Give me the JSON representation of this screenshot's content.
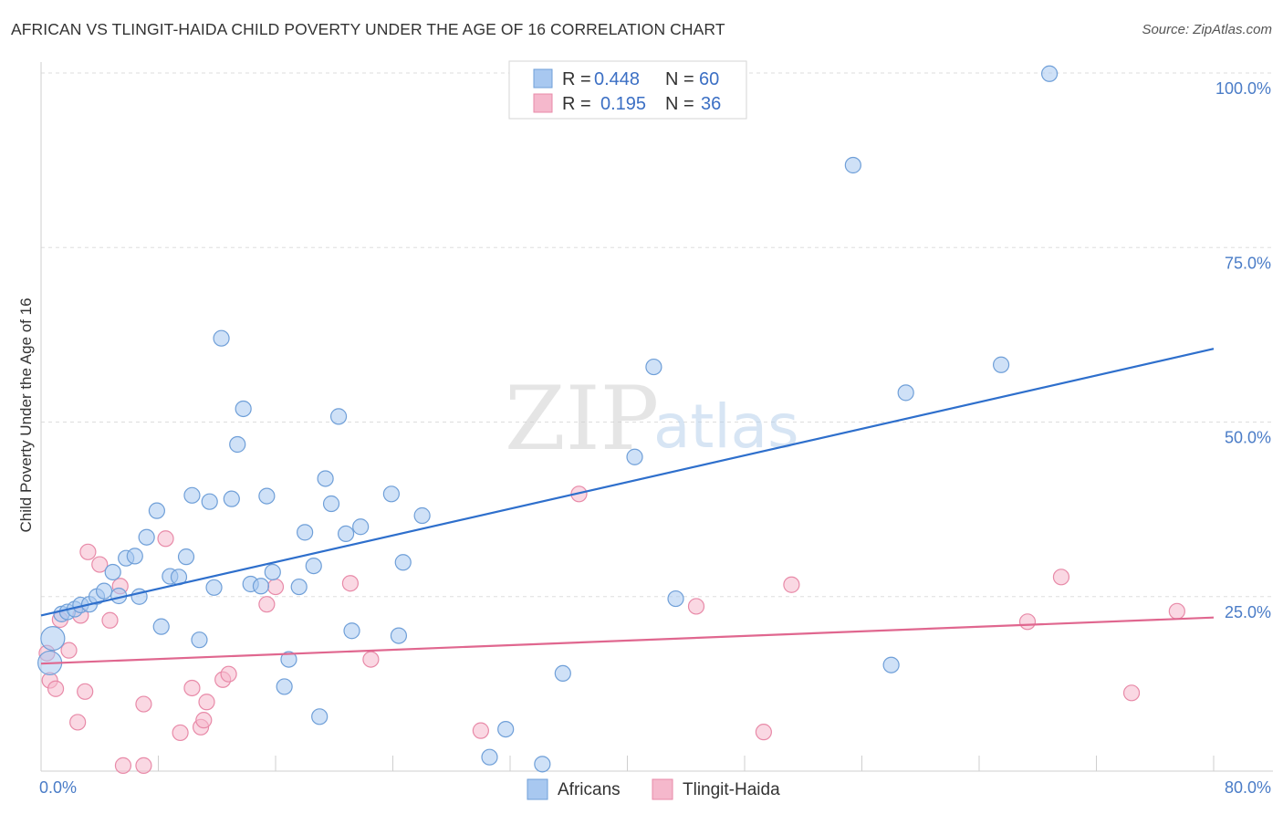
{
  "title": "AFRICAN VS TLINGIT-HAIDA CHILD POVERTY UNDER THE AGE OF 16 CORRELATION CHART",
  "source": "Source: ZipAtlas.com",
  "watermark": {
    "zip": "ZIP",
    "atlas": "atlas"
  },
  "colors": {
    "africans_fill": "#a8c8f0",
    "africans_stroke": "#6f9fd8",
    "africans_line": "#2e6fcc",
    "tlingit_fill": "#f5b8cc",
    "tlingit_stroke": "#e88aa8",
    "tlingit_line": "#e0678f",
    "tick_text": "#4a7cc7",
    "grid": "#dddddd"
  },
  "legend": {
    "rows": [
      {
        "r_label": "R =",
        "r_value": "0.448",
        "n_label": "N =",
        "n_value": "60"
      },
      {
        "r_label": "R =",
        "r_value": "0.195",
        "n_label": "N =",
        "n_value": "36"
      }
    ]
  },
  "chart_data": {
    "type": "scatter",
    "title": "AFRICAN VS TLINGIT-HAIDA CHILD POVERTY UNDER THE AGE OF 16 CORRELATION CHART",
    "xlabel": "",
    "ylabel": "Child Poverty Under the Age of 16",
    "xlim": [
      0,
      80
    ],
    "ylim": [
      0,
      100
    ],
    "x_tick_labels": [
      "0.0%",
      "80.0%"
    ],
    "y_ticks": [
      25,
      50,
      75,
      100
    ],
    "y_tick_labels": [
      "25.0%",
      "50.0%",
      "75.0%",
      "100.0%"
    ],
    "grid": true,
    "legend_position": "top-center",
    "series": [
      {
        "name": "Africans",
        "trend": {
          "x": [
            0,
            80
          ],
          "y": [
            22.3,
            60.5
          ]
        },
        "points": [
          {
            "x": 0.8,
            "y": 19.0,
            "big": true
          },
          {
            "x": 0.6,
            "y": 15.5,
            "big": true
          },
          {
            "x": 1.4,
            "y": 22.5
          },
          {
            "x": 1.8,
            "y": 22.8
          },
          {
            "x": 2.3,
            "y": 23.2
          },
          {
            "x": 2.7,
            "y": 23.8
          },
          {
            "x": 3.3,
            "y": 23.9
          },
          {
            "x": 3.8,
            "y": 25.0
          },
          {
            "x": 4.3,
            "y": 25.8
          },
          {
            "x": 4.9,
            "y": 28.5
          },
          {
            "x": 5.3,
            "y": 25.1
          },
          {
            "x": 5.8,
            "y": 30.5
          },
          {
            "x": 6.4,
            "y": 30.8
          },
          {
            "x": 6.7,
            "y": 25.0
          },
          {
            "x": 7.2,
            "y": 33.5
          },
          {
            "x": 7.9,
            "y": 37.3
          },
          {
            "x": 8.2,
            "y": 20.7
          },
          {
            "x": 8.8,
            "y": 27.9
          },
          {
            "x": 9.4,
            "y": 27.8
          },
          {
            "x": 9.9,
            "y": 30.7
          },
          {
            "x": 10.3,
            "y": 39.5
          },
          {
            "x": 10.8,
            "y": 18.8
          },
          {
            "x": 11.5,
            "y": 38.6
          },
          {
            "x": 11.8,
            "y": 26.3
          },
          {
            "x": 12.3,
            "y": 62.0
          },
          {
            "x": 13.0,
            "y": 39.0
          },
          {
            "x": 13.4,
            "y": 46.8
          },
          {
            "x": 13.8,
            "y": 51.9
          },
          {
            "x": 14.3,
            "y": 26.8
          },
          {
            "x": 15.0,
            "y": 26.5
          },
          {
            "x": 15.4,
            "y": 39.4
          },
          {
            "x": 15.8,
            "y": 28.5
          },
          {
            "x": 16.9,
            "y": 16.0
          },
          {
            "x": 17.6,
            "y": 26.4
          },
          {
            "x": 18.0,
            "y": 34.2
          },
          {
            "x": 18.6,
            "y": 29.4
          },
          {
            "x": 19.4,
            "y": 41.9
          },
          {
            "x": 19.8,
            "y": 38.3
          },
          {
            "x": 20.8,
            "y": 34.0
          },
          {
            "x": 21.8,
            "y": 35.0
          },
          {
            "x": 20.3,
            "y": 50.8
          },
          {
            "x": 21.2,
            "y": 20.1
          },
          {
            "x": 16.6,
            "y": 12.1
          },
          {
            "x": 19.0,
            "y": 7.8
          },
          {
            "x": 24.4,
            "y": 19.4
          },
          {
            "x": 24.7,
            "y": 29.9
          },
          {
            "x": 23.9,
            "y": 39.7
          },
          {
            "x": 26.0,
            "y": 36.6
          },
          {
            "x": 30.6,
            "y": 2.0
          },
          {
            "x": 31.7,
            "y": 6.0
          },
          {
            "x": 34.2,
            "y": 1.0
          },
          {
            "x": 35.6,
            "y": 14.0
          },
          {
            "x": 40.5,
            "y": 45.0
          },
          {
            "x": 41.8,
            "y": 57.9
          },
          {
            "x": 43.3,
            "y": 24.7
          },
          {
            "x": 55.4,
            "y": 86.8
          },
          {
            "x": 58.0,
            "y": 15.2
          },
          {
            "x": 59.0,
            "y": 54.2
          },
          {
            "x": 65.5,
            "y": 58.2
          },
          {
            "x": 68.8,
            "y": 99.9
          }
        ]
      },
      {
        "name": "Tlingit-Haida",
        "trend": {
          "x": [
            0,
            80
          ],
          "y": [
            15.4,
            22.0
          ]
        },
        "points": [
          {
            "x": 0.4,
            "y": 16.9
          },
          {
            "x": 0.6,
            "y": 13.0
          },
          {
            "x": 1.0,
            "y": 11.8
          },
          {
            "x": 1.3,
            "y": 21.7
          },
          {
            "x": 1.9,
            "y": 17.3
          },
          {
            "x": 2.5,
            "y": 7.0
          },
          {
            "x": 2.7,
            "y": 22.3
          },
          {
            "x": 3.0,
            "y": 11.4
          },
          {
            "x": 3.2,
            "y": 31.4
          },
          {
            "x": 4.0,
            "y": 29.6
          },
          {
            "x": 4.7,
            "y": 21.6
          },
          {
            "x": 5.4,
            "y": 26.5
          },
          {
            "x": 5.6,
            "y": 0.8
          },
          {
            "x": 7.0,
            "y": 0.8
          },
          {
            "x": 7.0,
            "y": 9.6
          },
          {
            "x": 8.5,
            "y": 33.3
          },
          {
            "x": 9.5,
            "y": 5.5
          },
          {
            "x": 10.3,
            "y": 11.9
          },
          {
            "x": 10.9,
            "y": 6.3
          },
          {
            "x": 11.1,
            "y": 7.3
          },
          {
            "x": 11.3,
            "y": 9.9
          },
          {
            "x": 12.4,
            "y": 13.1
          },
          {
            "x": 12.8,
            "y": 13.9
          },
          {
            "x": 15.4,
            "y": 23.9
          },
          {
            "x": 16.0,
            "y": 26.4
          },
          {
            "x": 21.1,
            "y": 26.9
          },
          {
            "x": 22.5,
            "y": 16.0
          },
          {
            "x": 30.0,
            "y": 5.8
          },
          {
            "x": 36.7,
            "y": 39.7
          },
          {
            "x": 44.7,
            "y": 23.6
          },
          {
            "x": 49.3,
            "y": 5.6
          },
          {
            "x": 51.2,
            "y": 26.7
          },
          {
            "x": 67.3,
            "y": 21.4
          },
          {
            "x": 69.6,
            "y": 27.8
          },
          {
            "x": 74.4,
            "y": 11.2
          },
          {
            "x": 77.5,
            "y": 22.9
          }
        ]
      }
    ]
  },
  "bottom_legend": [
    {
      "label": "Africans"
    },
    {
      "label": "Tlingit-Haida"
    }
  ]
}
